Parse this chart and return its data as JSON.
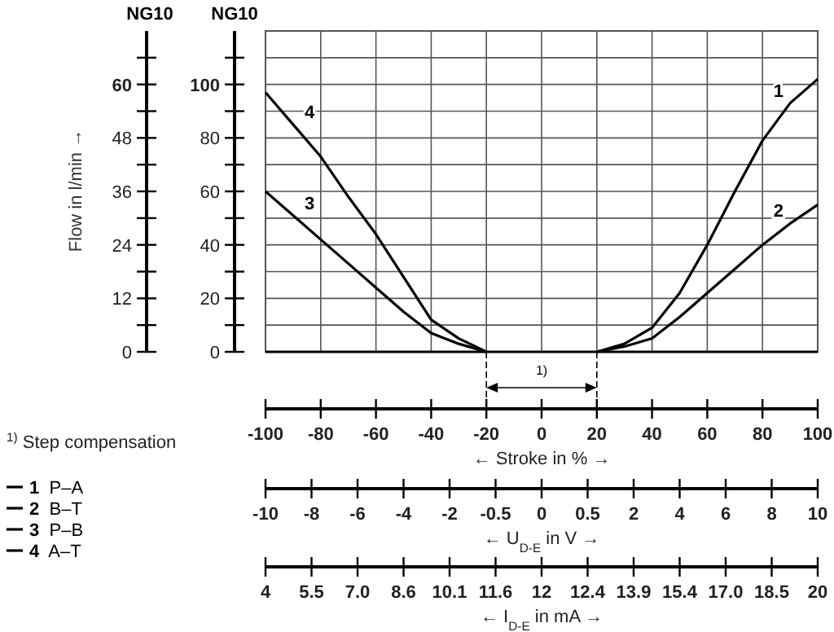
{
  "chart_data": [
    {
      "type": "line",
      "ylabel": "Flow in l/min →",
      "xlabel": "← Stroke in % →",
      "annotations": [
        "NG10",
        "NG10",
        "$^{1)}$ Step compensation",
        "1)",
        "1",
        "2",
        "3",
        "4"
      ],
      "xlim": [
        -100,
        100
      ],
      "xticks": [
        -100,
        -80,
        -60,
        -40,
        -20,
        0,
        20,
        40,
        60,
        80,
        100
      ],
      "ylim": [
        0,
        72
      ],
      "yticks": [
        0,
        {
          "value": 6,
          "label": null
        },
        12,
        {
          "value": 18,
          "label": null
        },
        24,
        {
          "value": 30,
          "label": null
        },
        36,
        {
          "value": 42,
          "label": null
        },
        48,
        {
          "value": 54,
          "label": null
        },
        60,
        {
          "value": 66,
          "label": null
        }
      ],
      "y2lim": [
        0,
        120
      ],
      "y2ticks": [
        0,
        {
          "value": 10,
          "label": null
        },
        20,
        {
          "value": 30,
          "label": null
        },
        40,
        {
          "value": 50,
          "label": null
        },
        60,
        {
          "value": 70,
          "label": null
        },
        80,
        {
          "value": 90,
          "label": null
        },
        100,
        {
          "value": 110,
          "label": null
        }
      ],
      "grid": true,
      "legend": "bottom left",
      "line_style": "solid",
      "marker": "none",
      "series": [
        {
          "name": "1 P–A",
          "axis": "y2",
          "color": "#000000",
          "x": [
            20,
            30,
            40,
            50,
            60,
            70,
            80,
            90,
            100
          ],
          "values": [
            0,
            3,
            9,
            22,
            40,
            60,
            79,
            93,
            102
          ]
        },
        {
          "name": "2 B–T",
          "axis": "y2",
          "color": "#000000",
          "x": [
            20,
            30,
            40,
            50,
            60,
            70,
            80,
            90,
            100
          ],
          "values": [
            0,
            2,
            5,
            13,
            22,
            31,
            40,
            48,
            55
          ]
        },
        {
          "name": "3 P–B",
          "axis": "y2",
          "color": "#000000",
          "x": [
            -100,
            -90,
            -80,
            -70,
            -60,
            -50,
            -40,
            -30,
            -20
          ],
          "values": [
            60,
            51,
            42,
            33,
            24,
            15,
            7,
            3,
            0
          ]
        },
        {
          "name": "4 A–T",
          "axis": "y2",
          "color": "#000000",
          "x": [
            -100,
            -90,
            -80,
            -70,
            -60,
            -50,
            -40,
            -30,
            -20
          ],
          "values": [
            97,
            85,
            73,
            58,
            44,
            28,
            12,
            5,
            0
          ]
        }
      ]
    },
    {
      "type": "other",
      "xlabel": "← U$_{D-E}$ in V →",
      "categories": [
        "-10",
        "-8",
        "-6",
        "-4",
        "-2",
        "-0.5",
        "0",
        "0.5",
        "2",
        "4",
        "6",
        "8",
        "10"
      ]
    },
    {
      "type": "other",
      "xlabel": "← I$_{D-E}$ in mA →",
      "categories": [
        "4",
        "5.5",
        "7.0",
        "8.6",
        "10.1",
        "11.6",
        "12",
        "12.4",
        "13.9",
        "15.4",
        "17.0",
        "18.5",
        "20"
      ]
    }
  ]
}
